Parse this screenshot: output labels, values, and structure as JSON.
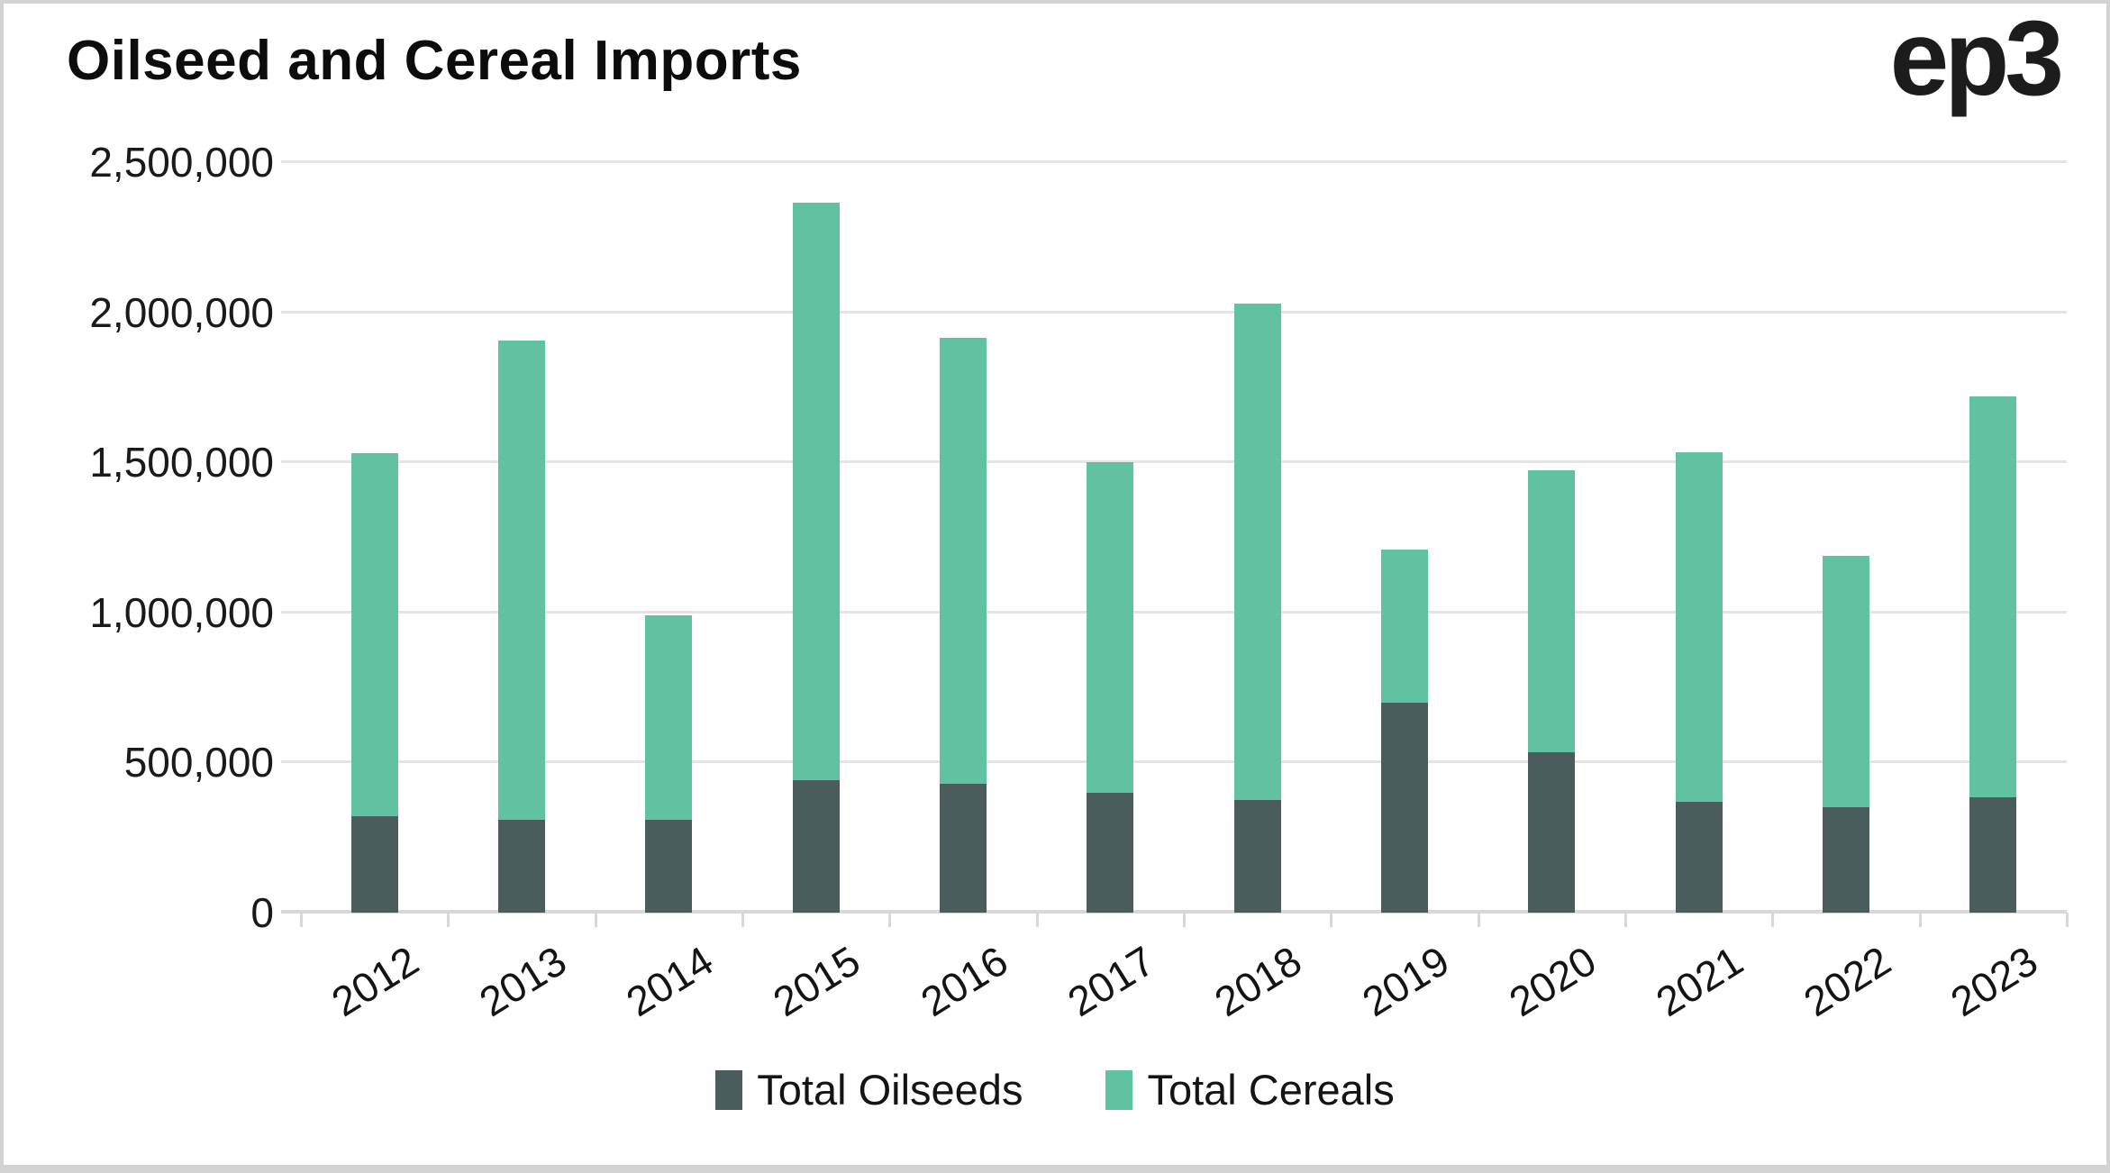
{
  "card": {
    "logo": "ep3"
  },
  "chart_data": {
    "type": "bar",
    "stacked": true,
    "title": "Oilseed and Cereal Imports",
    "xlabel": "",
    "ylabel": "",
    "grid": "horizontal",
    "legend_position": "bottom-center",
    "x_label_rotation_deg": -32,
    "ylim": [
      0,
      2500000
    ],
    "yticks": [
      {
        "value": 0,
        "label": "0"
      },
      {
        "value": 500000,
        "label": "500,000"
      },
      {
        "value": 1000000,
        "label": "1,000,000"
      },
      {
        "value": 1500000,
        "label": "1,500,000"
      },
      {
        "value": 2000000,
        "label": "2,000,000"
      },
      {
        "value": 2500000,
        "label": "2,500,000"
      }
    ],
    "categories": [
      "2012",
      "2013",
      "2014",
      "2015",
      "2016",
      "2017",
      "2018",
      "2019",
      "2020",
      "2021",
      "2022",
      "2023"
    ],
    "series": [
      {
        "name": "Total Oilseeds",
        "color": "#4b5c5c",
        "values": [
          320000,
          310000,
          310000,
          440000,
          430000,
          400000,
          375000,
          700000,
          535000,
          370000,
          350000,
          385000
        ]
      },
      {
        "name": "Total Cereals",
        "color": "#60c2a1",
        "values": [
          1210000,
          1595000,
          680000,
          1925000,
          1485000,
          1100000,
          1655000,
          510000,
          940000,
          1165000,
          840000,
          1335000
        ]
      }
    ],
    "stacked_totals": [
      1530000,
      1905000,
      990000,
      2365000,
      1915000,
      1500000,
      2030000,
      1210000,
      1475000,
      1535000,
      1190000,
      1720000
    ]
  },
  "colors": {
    "background": "#ffffff",
    "border": "#d3d3d3",
    "gridline": "#e4e4e4",
    "axis": "#d8d8d8",
    "title_text": "#0c0c0c",
    "axis_text": "#1a1a1a"
  }
}
